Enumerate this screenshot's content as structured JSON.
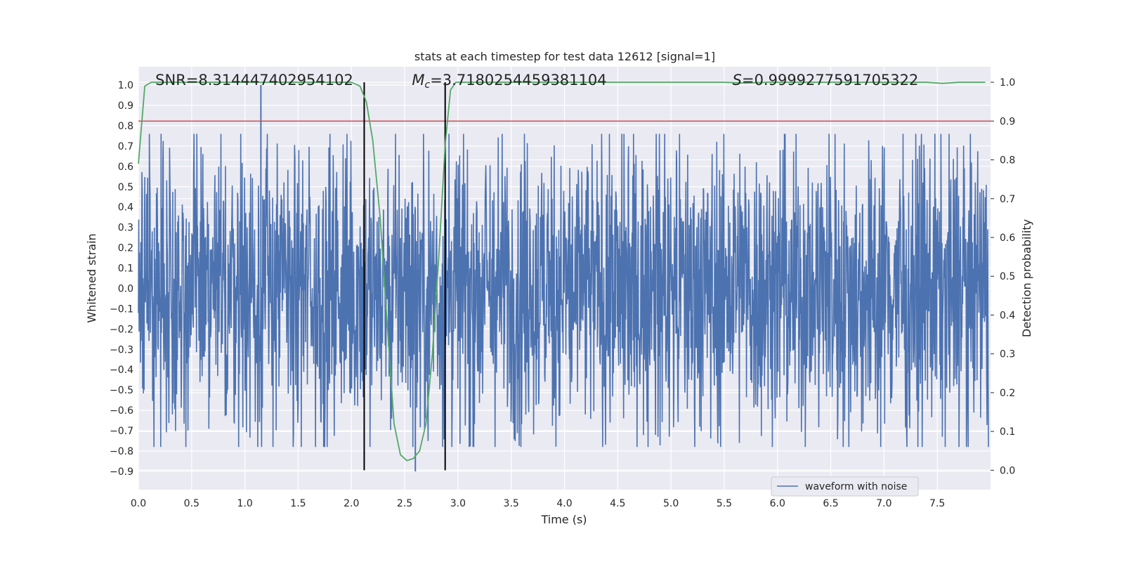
{
  "chart_data": {
    "type": "line",
    "title": "stats at each timestep for test data 12612 [signal=1]",
    "xlabel": "Time (s)",
    "ylabel_left": "Whitened strain",
    "ylabel_right": "Detection probability",
    "xlim": [
      0.0,
      8.0
    ],
    "ylim_left": [
      -0.99,
      1.09
    ],
    "ylim_right": [
      -0.05,
      1.04
    ],
    "x_ticks": [
      "0.0",
      "0.5",
      "1.0",
      "1.5",
      "2.0",
      "2.5",
      "3.0",
      "3.5",
      "4.0",
      "4.5",
      "5.0",
      "5.5",
      "6.0",
      "6.5",
      "7.0",
      "7.5"
    ],
    "y_left_ticks": [
      "1.0",
      "0.9",
      "0.8",
      "0.7",
      "0.6",
      "0.5",
      "0.4",
      "0.3",
      "0.2",
      "0.1",
      "0.0",
      "−0.1",
      "−0.2",
      "−0.3",
      "−0.4",
      "−0.5",
      "−0.6",
      "−0.7",
      "−0.8",
      "−0.9"
    ],
    "y_right_ticks": [
      "1.0",
      "0.9",
      "0.8",
      "0.7",
      "0.6",
      "0.5",
      "0.4",
      "0.3",
      "0.2",
      "0.1",
      "0.0"
    ],
    "annotations": {
      "snr": "SNR=8.314447402954102",
      "mc_symbol": "M",
      "mc_sub": "c",
      "mc_value": "=3.7180254459381104",
      "s_symbol": "S",
      "s_value": "=0.9999277591705322"
    },
    "threshold_right": 0.9,
    "vlines_x": [
      2.12,
      2.88
    ],
    "legend": {
      "label": "waveform with noise",
      "placement": "lower-right"
    },
    "series": [
      {
        "name": "waveform with noise",
        "axis": "left",
        "color": "#4c72b0",
        "peak": {
          "x": 1.15,
          "y": 1.0
        },
        "trough": {
          "x": 2.6,
          "y": -0.9
        }
      },
      {
        "name": "Detection probability",
        "axis": "right",
        "color": "#55a868",
        "x": [
          0.0,
          0.06,
          0.12,
          0.2,
          0.4,
          0.6,
          0.8,
          1.0,
          1.2,
          1.4,
          1.6,
          1.8,
          2.0,
          2.08,
          2.14,
          2.2,
          2.27,
          2.33,
          2.4,
          2.46,
          2.52,
          2.58,
          2.64,
          2.7,
          2.76,
          2.82,
          2.88,
          2.93,
          2.98,
          3.1,
          3.5,
          4.0,
          4.5,
          5.0,
          5.5,
          5.7,
          5.9,
          6.1,
          6.5,
          7.0,
          7.4,
          7.55,
          7.7,
          7.95
        ],
        "values": [
          0.79,
          0.99,
          1.0,
          1.0,
          1.0,
          1.0,
          1.0,
          1.0,
          1.0,
          1.0,
          1.0,
          1.0,
          1.0,
          0.99,
          0.95,
          0.85,
          0.65,
          0.4,
          0.12,
          0.04,
          0.025,
          0.03,
          0.05,
          0.12,
          0.3,
          0.55,
          0.84,
          0.98,
          1.0,
          1.0,
          1.0,
          1.0,
          1.0,
          1.0,
          1.0,
          0.998,
          1.0,
          1.0,
          1.0,
          1.0,
          1.0,
          0.997,
          1.0,
          1.0
        ]
      }
    ]
  },
  "colors": {
    "plot_bg": "#eaeaf2",
    "grid": "#ffffff",
    "waveform": "#4c72b0",
    "probability": "#55a868",
    "threshold": "#c44e52",
    "vline": "#000000",
    "text": "#262626"
  }
}
